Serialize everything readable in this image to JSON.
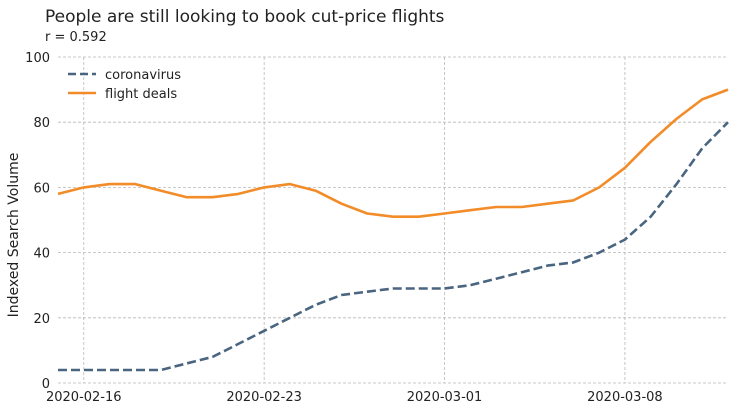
{
  "chart_data": {
    "type": "line",
    "title": "People are still looking to book cut-price flights",
    "subtitle": "r = 0.592",
    "xlabel": "",
    "ylabel": "Indexed Search Volume",
    "ylim": [
      0,
      100
    ],
    "yticks": [
      0,
      20,
      40,
      60,
      80,
      100
    ],
    "xlim": [
      "2020-02-15",
      "2020-03-12"
    ],
    "xticks": [
      "2020-02-16",
      "2020-02-23",
      "2020-03-01",
      "2020-03-08"
    ],
    "grid": true,
    "legend_position": "top-left",
    "series": [
      {
        "name": "coronavirus",
        "style": "dashed",
        "color": "#4a6580",
        "points": [
          [
            "2020-02-15",
            4
          ],
          [
            "2020-02-16",
            4
          ],
          [
            "2020-02-17",
            4
          ],
          [
            "2020-02-18",
            4
          ],
          [
            "2020-02-19",
            4
          ],
          [
            "2020-02-20",
            6
          ],
          [
            "2020-02-21",
            8
          ],
          [
            "2020-02-22",
            12
          ],
          [
            "2020-02-23",
            16
          ],
          [
            "2020-02-24",
            20
          ],
          [
            "2020-02-25",
            24
          ],
          [
            "2020-02-26",
            27
          ],
          [
            "2020-02-27",
            28
          ],
          [
            "2020-02-28",
            29
          ],
          [
            "2020-02-29",
            29
          ],
          [
            "2020-03-01",
            29
          ],
          [
            "2020-03-02",
            30
          ],
          [
            "2020-03-03",
            32
          ],
          [
            "2020-03-04",
            34
          ],
          [
            "2020-03-05",
            36
          ],
          [
            "2020-03-06",
            37
          ],
          [
            "2020-03-07",
            40
          ],
          [
            "2020-03-08",
            44
          ],
          [
            "2020-03-09",
            51
          ],
          [
            "2020-03-10",
            61
          ],
          [
            "2020-03-11",
            72
          ],
          [
            "2020-03-12",
            80
          ]
        ]
      },
      {
        "name": "flight deals",
        "style": "solid",
        "color": "#f28c28",
        "points": [
          [
            "2020-02-15",
            58
          ],
          [
            "2020-02-16",
            60
          ],
          [
            "2020-02-17",
            61
          ],
          [
            "2020-02-18",
            61
          ],
          [
            "2020-02-19",
            59
          ],
          [
            "2020-02-20",
            57
          ],
          [
            "2020-02-21",
            57
          ],
          [
            "2020-02-22",
            58
          ],
          [
            "2020-02-23",
            60
          ],
          [
            "2020-02-24",
            61
          ],
          [
            "2020-02-25",
            59
          ],
          [
            "2020-02-26",
            55
          ],
          [
            "2020-02-27",
            52
          ],
          [
            "2020-02-28",
            51
          ],
          [
            "2020-02-29",
            51
          ],
          [
            "2020-03-01",
            52
          ],
          [
            "2020-03-02",
            53
          ],
          [
            "2020-03-03",
            54
          ],
          [
            "2020-03-04",
            54
          ],
          [
            "2020-03-05",
            55
          ],
          [
            "2020-03-06",
            56
          ],
          [
            "2020-03-07",
            60
          ],
          [
            "2020-03-08",
            66
          ],
          [
            "2020-03-09",
            74
          ],
          [
            "2020-03-10",
            81
          ],
          [
            "2020-03-11",
            87
          ],
          [
            "2020-03-12",
            90
          ]
        ]
      }
    ]
  }
}
